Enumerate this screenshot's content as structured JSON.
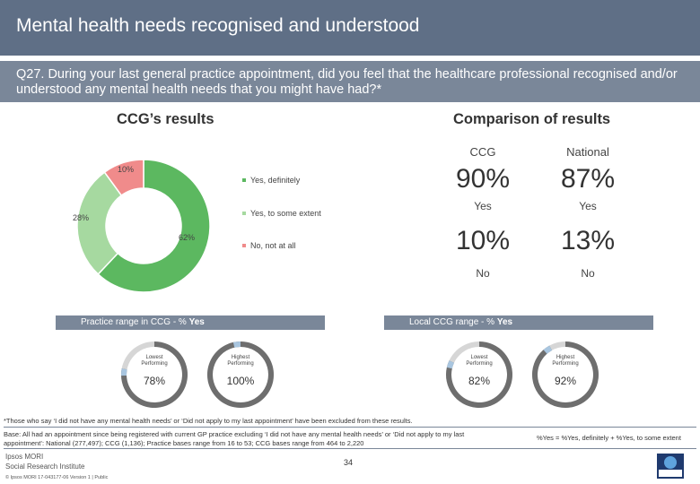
{
  "header": {
    "title": "Mental health needs recognised and understood",
    "question": "Q27. During your last general practice appointment, did you feel that the healthcare professional recognised and/or understood any mental health needs that you might have had?*"
  },
  "ccg_results": {
    "heading": "CCG’s results",
    "slice_labels": [
      "10%",
      "28%",
      "62%"
    ]
  },
  "legend": [
    {
      "label": "Yes, definitely",
      "color": "#5cb860"
    },
    {
      "label": "Yes, to some extent",
      "color": "#a6d9a0"
    },
    {
      "label": "No, not at all",
      "color": "#f08b8b"
    }
  ],
  "comparison": {
    "heading": "Comparison of results",
    "col_ccg": "CCG",
    "col_national": "National",
    "yes_ccg": "90%",
    "yes_national": "87%",
    "yes_label": "Yes",
    "no_ccg": "10%",
    "no_national": "13%",
    "no_label": "No"
  },
  "practice_range": {
    "label_prefix": "Practice range in CCG - % ",
    "label_bold": "Yes",
    "lowest_label": "Lowest Performing",
    "highest_label": "Highest Performing",
    "lowest_value": "78%",
    "highest_value": "100%"
  },
  "local_range": {
    "label_prefix": "Local CCG range - % ",
    "label_bold": "Yes",
    "lowest_label": "Lowest Performing",
    "highest_label": "Highest Performing",
    "lowest_value": "82%",
    "highest_value": "92%"
  },
  "gauge_values": {
    "practice_lowest": 78,
    "practice_highest": 100,
    "local_lowest": 82,
    "local_highest": 92
  },
  "footer": {
    "exclusion_note": "*Those who say ‘I did not have any mental health needs’ or ‘Did not apply to my last appointment’ have been excluded from these results.",
    "base_text": "Base: All had an appointment since being registered with current GP practice excluding ‘I did not have any mental health needs’ or ‘Did not apply to my last appointment’: National (277,497); CCG (1,136); Practice bases range from 16 to 53; CCG bases range from 464 to 2,220",
    "yes_formula": "%Yes = %Yes, definitely + %Yes, to some extent",
    "page_number": "34",
    "brand_line1": "Ipsos MORI",
    "brand_line2": "Social Research Institute",
    "copyright": "© Ipsos MORI     17-043177-06 Version 1 | Public"
  },
  "chart_data": [
    {
      "type": "pie",
      "title": "CCG’s results",
      "categories": [
        "Yes, definitely",
        "Yes, to some extent",
        "No, not at all"
      ],
      "values": [
        62,
        28,
        10
      ],
      "colors": [
        "#5cb860",
        "#a6d9a0",
        "#f08b8b"
      ],
      "legend": "right"
    },
    {
      "type": "table",
      "title": "Comparison of results",
      "columns": [
        "CCG",
        "National"
      ],
      "rows": [
        {
          "label": "Yes",
          "values": [
            90,
            87
          ]
        },
        {
          "label": "No",
          "values": [
            10,
            13
          ]
        }
      ]
    }
  ]
}
